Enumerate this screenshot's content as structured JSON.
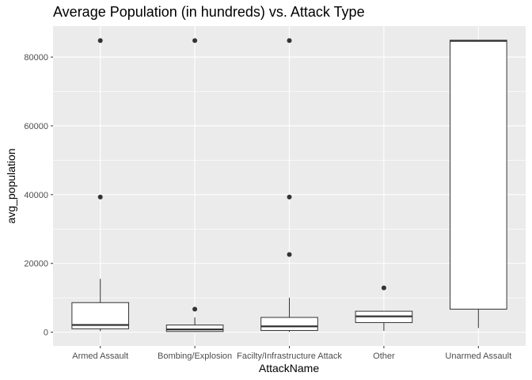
{
  "chart_data": {
    "type": "box",
    "title": "Average Population (in hundreds) vs. Attack Type",
    "xlabel": "AttackName",
    "ylabel": "avg_population",
    "ylim": [
      -4000,
      89000
    ],
    "y_ticks": [
      0,
      20000,
      40000,
      60000,
      80000
    ],
    "y_tick_labels": [
      "0",
      "20000",
      "40000",
      "60000",
      "80000"
    ],
    "grid": true,
    "colors": {
      "panel": "#ebebeb",
      "grid": "#ffffff",
      "box_fill": "#ffffff",
      "stroke": "#333333",
      "tick_text": "#4d4d4d"
    },
    "categories": [
      "Armed Assault",
      "Bombing/Explosion",
      "Facilty/Infrastructure Attack",
      "Other",
      "Unarmed Assault"
    ],
    "boxes": [
      {
        "q1": 1000,
        "median": 2100,
        "q3": 8600,
        "whisker_low": 300,
        "whisker_high": 15500,
        "outliers": [
          39300,
          84800
        ]
      },
      {
        "q1": 200,
        "median": 800,
        "q3": 2100,
        "whisker_low": 100,
        "whisker_high": 4300,
        "outliers": [
          6700,
          84800
        ]
      },
      {
        "q1": 500,
        "median": 1700,
        "q3": 4300,
        "whisker_low": 100,
        "whisker_high": 10000,
        "outliers": [
          22600,
          39300,
          84800
        ]
      },
      {
        "q1": 2800,
        "median": 4600,
        "q3": 6100,
        "whisker_low": 400,
        "whisker_high": 6100,
        "outliers": [
          12900
        ]
      },
      {
        "q1": 6700,
        "median": 84700,
        "q3": 84900,
        "whisker_low": 1200,
        "whisker_high": 84900,
        "outliers": []
      }
    ]
  }
}
